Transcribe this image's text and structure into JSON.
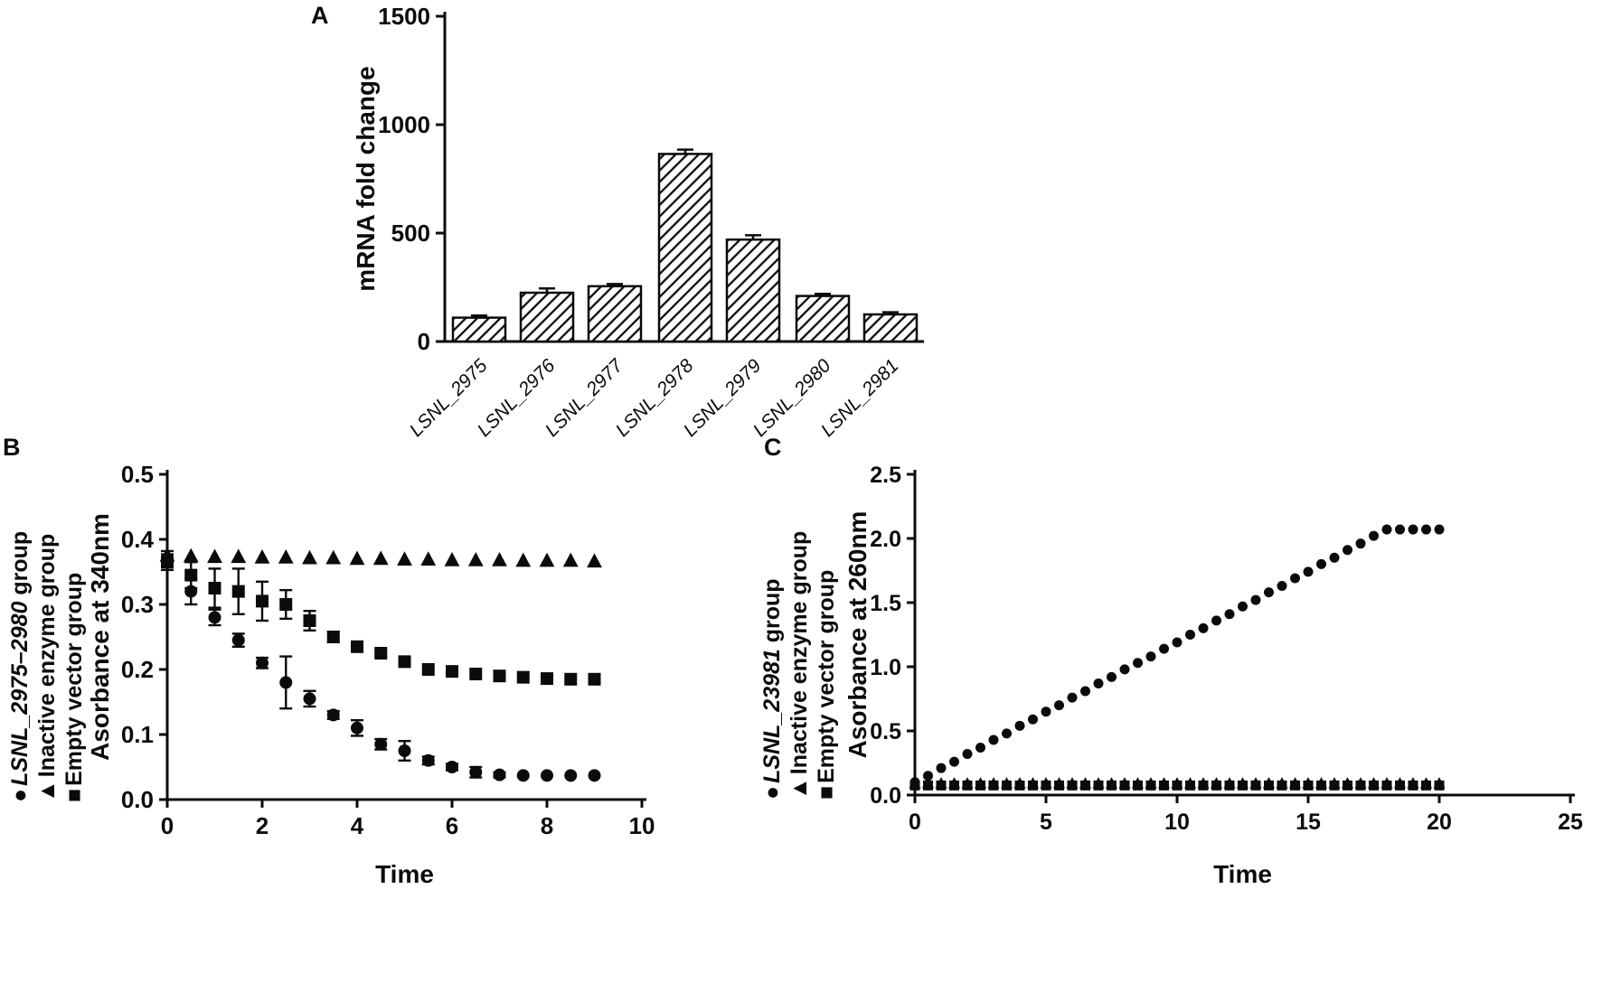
{
  "figure": {
    "background": "#ffffff",
    "ink": "#0b0b0b"
  },
  "panels": {
    "a": {
      "label": "A",
      "chart_data": {
        "type": "bar",
        "title": "",
        "ylabel": "mRNA fold change",
        "xlabel": "",
        "ylim": [
          0,
          1500
        ],
        "yticks": [
          0,
          500,
          1000,
          1500
        ],
        "ytick_labels": [
          "0",
          "500",
          "1000",
          "1500"
        ],
        "categories": [
          "LSNL_2975",
          "LSNL_2976",
          "LSNL_2977",
          "LSNL_2978",
          "LSNL_2979",
          "LSNL_2980",
          "LSNL_2981"
        ],
        "values": [
          110,
          225,
          255,
          865,
          470,
          210,
          125
        ],
        "errors": [
          10,
          20,
          10,
          20,
          20,
          10,
          10
        ],
        "bar_fill": "diagonal-hatch",
        "grid": false
      }
    },
    "b": {
      "label": "B",
      "chart_data": {
        "type": "scatter",
        "title": "",
        "xlabel": "Time",
        "ylabel": "Asorbance at 340nm",
        "xlim": [
          0,
          10
        ],
        "ylim": [
          0,
          0.5
        ],
        "xticks": [
          0,
          2,
          4,
          6,
          8,
          10
        ],
        "xtick_labels": [
          "0",
          "2",
          "4",
          "6",
          "8",
          "10"
        ],
        "yticks": [
          0,
          0.1,
          0.2,
          0.3,
          0.4,
          0.5
        ],
        "ytick_labels": [
          "0.0",
          "0.1",
          "0.2",
          "0.3",
          "0.4",
          "0.5"
        ],
        "grid": false,
        "legend_position": "left-rotated",
        "x": [
          0,
          0.5,
          1,
          1.5,
          2,
          2.5,
          3,
          3.5,
          4,
          4.5,
          5,
          5.5,
          6,
          6.5,
          7,
          7.5,
          8,
          8.5,
          9
        ],
        "series": [
          {
            "name_italic": "LSNL_2975–2980",
            "name_rest": " group",
            "marker": "circle",
            "y": [
              0.37,
              0.32,
              0.28,
              0.245,
              0.21,
              0.18,
              0.155,
              0.13,
              0.11,
              0.085,
              0.075,
              0.06,
              0.05,
              0.042,
              0.038,
              0.037,
              0.037,
              0.037,
              0.037
            ],
            "err": [
              0.012,
              0.02,
              0.012,
              0.01,
              0.008,
              0.04,
              0.012,
              0.006,
              0.012,
              0.008,
              0.015,
              0.006,
              0.005,
              0.008,
              0.004,
              0.002,
              0.002,
              0.002,
              0.002
            ]
          },
          {
            "name_italic": "",
            "name_rest": "Inactive enzyme group",
            "marker": "triangle",
            "y": [
              0.375,
              0.374,
              0.373,
              0.373,
              0.372,
              0.372,
              0.371,
              0.371,
              0.37,
              0.37,
              0.369,
              0.369,
              0.368,
              0.368,
              0.368,
              0.367,
              0.367,
              0.367,
              0.366
            ]
          },
          {
            "name_italic": "",
            "name_rest": "Empty vector group",
            "marker": "square",
            "y": [
              0.365,
              0.345,
              0.325,
              0.32,
              0.305,
              0.3,
              0.275,
              0.25,
              0.235,
              0.225,
              0.212,
              0.2,
              0.197,
              0.193,
              0.19,
              0.188,
              0.186,
              0.185,
              0.185
            ],
            "err": [
              0.012,
              0.02,
              0.03,
              0.035,
              0.03,
              0.022,
              0.015,
              0.008,
              0.006,
              0.005,
              0.004,
              0.003,
              0.003,
              0.003,
              0.003,
              0.003,
              0.003,
              0.003,
              0.003
            ]
          }
        ]
      }
    },
    "c": {
      "label": "C",
      "chart_data": {
        "type": "scatter",
        "title": "",
        "xlabel": "Time",
        "ylabel": "Asorbance at 260nm",
        "xlim": [
          0,
          25
        ],
        "ylim": [
          0,
          2.5
        ],
        "xticks": [
          0,
          5,
          10,
          15,
          20,
          25
        ],
        "xtick_labels": [
          "0",
          "5",
          "10",
          "15",
          "20",
          "25"
        ],
        "yticks": [
          0,
          0.5,
          1.0,
          1.5,
          2.0,
          2.5
        ],
        "ytick_labels": [
          "0.0",
          "0.5",
          "1.0",
          "1.5",
          "2.0",
          "2.5"
        ],
        "grid": false,
        "legend_position": "left-rotated",
        "x": [
          0,
          0.5,
          1,
          1.5,
          2,
          2.5,
          3,
          3.5,
          4,
          4.5,
          5,
          5.5,
          6,
          6.5,
          7,
          7.5,
          8,
          8.5,
          9,
          9.5,
          10,
          10.5,
          11,
          11.5,
          12,
          12.5,
          13,
          13.5,
          14,
          14.5,
          15,
          15.5,
          16,
          16.5,
          17,
          17.5,
          18,
          18.5,
          19,
          19.5,
          20
        ],
        "series": [
          {
            "name_italic": "LSNL_23981",
            "name_rest": " group",
            "marker": "circle",
            "y": [
              0.1,
              0.15,
              0.21,
              0.26,
              0.32,
              0.37,
              0.43,
              0.48,
              0.54,
              0.59,
              0.65,
              0.7,
              0.76,
              0.81,
              0.87,
              0.92,
              0.98,
              1.03,
              1.08,
              1.14,
              1.19,
              1.25,
              1.3,
              1.36,
              1.41,
              1.47,
              1.52,
              1.58,
              1.63,
              1.69,
              1.74,
              1.8,
              1.85,
              1.91,
              1.96,
              2.02,
              2.07,
              2.07,
              2.07,
              2.07,
              2.07
            ]
          },
          {
            "name_italic": "",
            "name_rest": "Inactive enzyme group",
            "marker": "triangle",
            "y": [
              0.09,
              0.09,
              0.09,
              0.09,
              0.09,
              0.09,
              0.09,
              0.09,
              0.09,
              0.09,
              0.09,
              0.09,
              0.09,
              0.09,
              0.09,
              0.09,
              0.09,
              0.09,
              0.09,
              0.09,
              0.09,
              0.09,
              0.09,
              0.09,
              0.09,
              0.09,
              0.09,
              0.09,
              0.09,
              0.09,
              0.09,
              0.09,
              0.09,
              0.09,
              0.09,
              0.09,
              0.09,
              0.09,
              0.09,
              0.09,
              0.09
            ]
          },
          {
            "name_italic": "",
            "name_rest": "Empty vector group",
            "marker": "square",
            "y": [
              0.075,
              0.075,
              0.075,
              0.075,
              0.075,
              0.075,
              0.075,
              0.075,
              0.075,
              0.075,
              0.075,
              0.075,
              0.075,
              0.075,
              0.075,
              0.075,
              0.075,
              0.075,
              0.075,
              0.075,
              0.075,
              0.075,
              0.075,
              0.075,
              0.075,
              0.075,
              0.075,
              0.075,
              0.075,
              0.075,
              0.075,
              0.075,
              0.075,
              0.075,
              0.075,
              0.075,
              0.075,
              0.075,
              0.075,
              0.075,
              0.075
            ]
          }
        ]
      }
    }
  }
}
